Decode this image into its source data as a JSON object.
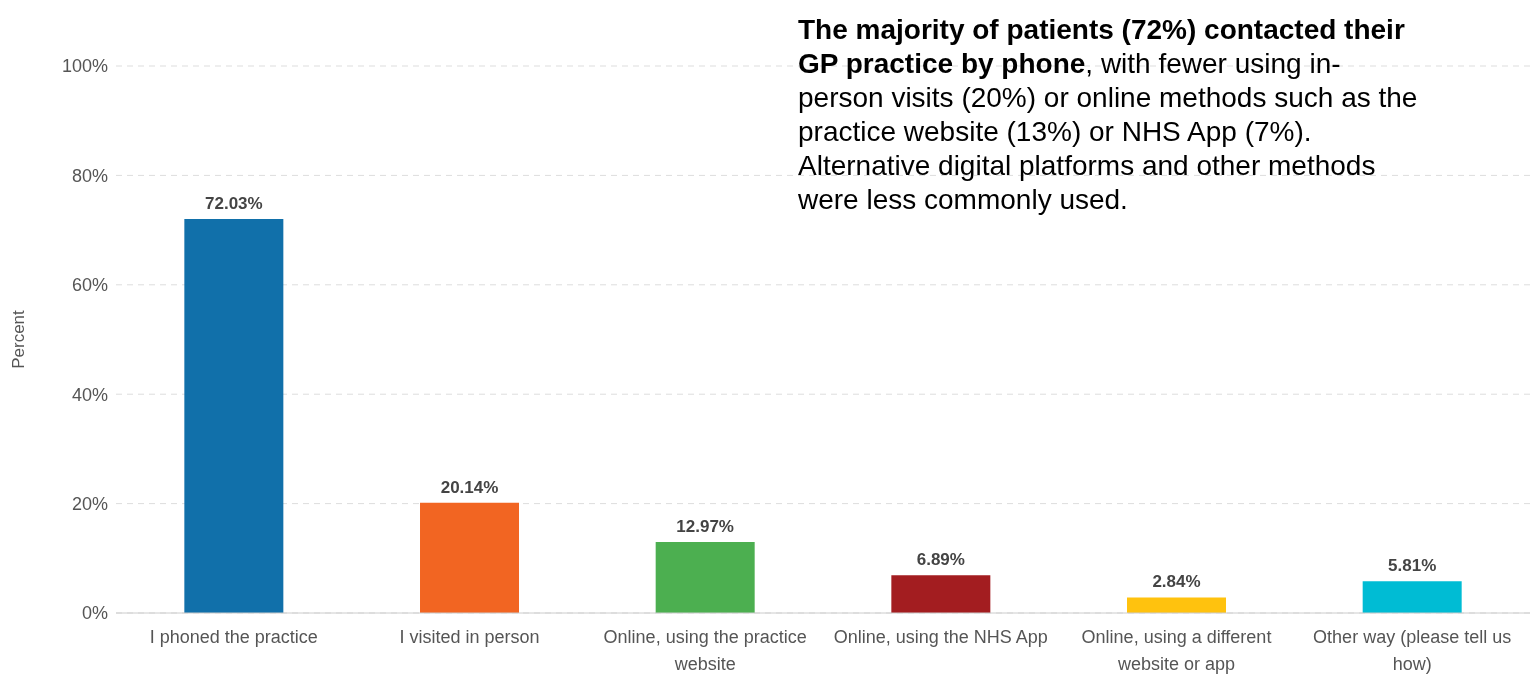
{
  "chart_data": {
    "type": "bar",
    "annotations": [
      "The majority of patients (72%) contacted their GP practice by phone",
      ", with fewer using in-person visits (20%) or online methods such as the practice website (13%) or NHS App (7%). Alternative digital platforms and other methods were less commonly used."
    ],
    "ylabel": "Percent",
    "categories": [
      "I phoned the practice",
      "I visited in person",
      "Online, using the practice website",
      "Online, using the NHS App",
      "Online, using a different website or app",
      "Other way (please tell us how)"
    ],
    "values": [
      72.03,
      20.14,
      12.97,
      6.89,
      2.84,
      5.81
    ],
    "colors": [
      "#1170aa",
      "#f26522",
      "#4caf50",
      "#a31d20",
      "#ffc20e",
      "#00bcd4"
    ],
    "value_labels": [
      "72.03%",
      "20.14%",
      "12.97%",
      "6.89%",
      "2.84%",
      "5.81%"
    ],
    "ylim": [
      0,
      100
    ],
    "yticks": [
      {
        "value": 0,
        "label": "0%"
      },
      {
        "value": 20,
        "label": "20%"
      },
      {
        "value": 40,
        "label": "40%"
      },
      {
        "value": 60,
        "label": "60%"
      },
      {
        "value": 80,
        "label": "80%"
      },
      {
        "value": 100,
        "label": "100%"
      }
    ],
    "grid": "y"
  }
}
